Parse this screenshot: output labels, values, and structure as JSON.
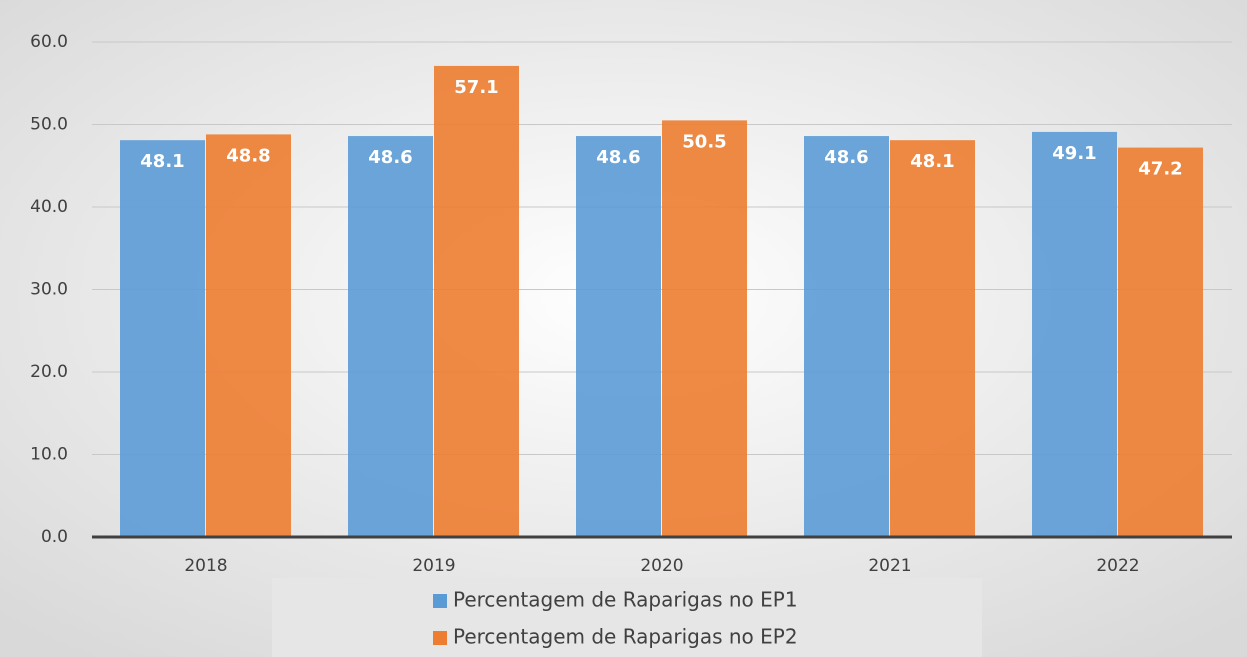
{
  "chart_data": {
    "type": "bar",
    "categories": [
      "2018",
      "2019",
      "2020",
      "2021",
      "2022"
    ],
    "series": [
      {
        "name": "Percentagem de Raparigas no EP1",
        "color": "#5b9bd5",
        "values": [
          48.1,
          48.6,
          48.6,
          48.6,
          49.1
        ]
      },
      {
        "name": "Percentagem de Raparigas no EP2",
        "color": "#ed7d31",
        "values": [
          48.8,
          57.1,
          50.5,
          48.1,
          47.2
        ]
      }
    ],
    "ylim": [
      0,
      60
    ],
    "yticks": [
      {
        "value": 0,
        "label": "0.0"
      },
      {
        "value": 10,
        "label": "10.0"
      },
      {
        "value": 20,
        "label": "20.0"
      },
      {
        "value": 30,
        "label": "30.0"
      },
      {
        "value": 40,
        "label": "40.0"
      },
      {
        "value": 50,
        "label": "50.0"
      },
      {
        "value": 60,
        "label": "60.0"
      }
    ],
    "grid": true,
    "legend": "bottom"
  }
}
